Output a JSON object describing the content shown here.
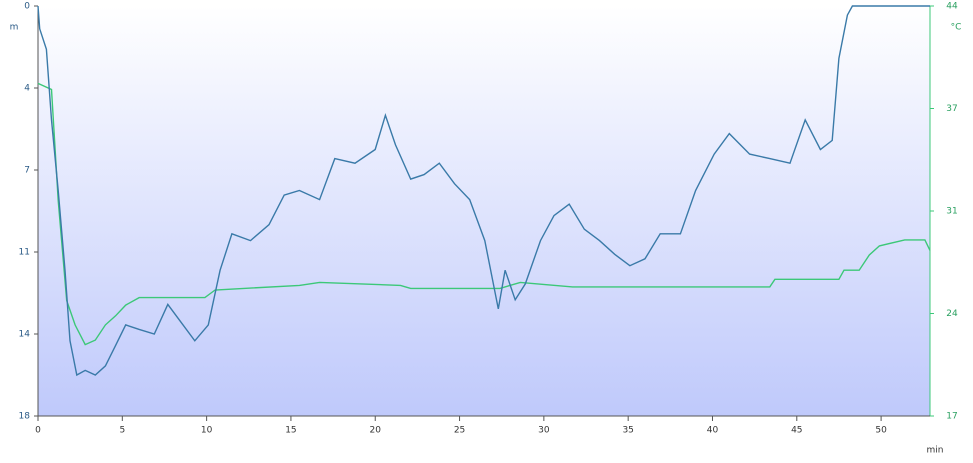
{
  "chart_data": {
    "type": "line",
    "ylabel": "m",
    "y2label": "°C",
    "xlabel": "min",
    "xlim": [
      0,
      52.9
    ],
    "xticks": [
      0,
      5,
      10,
      15,
      20,
      25,
      30,
      35,
      40,
      45,
      50
    ],
    "ylim": [
      0,
      18
    ],
    "y_inverted": true,
    "yticks": [
      0,
      {
        "value": 3.6,
        "label": "4"
      },
      {
        "value": 7.2,
        "label": "7"
      },
      {
        "value": 10.8,
        "label": "11"
      },
      {
        "value": 14.4,
        "label": "14"
      },
      18
    ],
    "y2lim": [
      17,
      44
    ],
    "y2ticks": [
      17,
      {
        "value": 23.75,
        "label": "24"
      },
      {
        "value": 30.5,
        "label": "31"
      },
      {
        "value": 37.25,
        "label": "37"
      },
      44
    ],
    "series": [
      {
        "color": "#3a7aa8",
        "axis": "y",
        "x": [
          0,
          0.1,
          0.5,
          0.8,
          1.2,
          1.6,
          1.9,
          2.3,
          2.8,
          3.4,
          4.0,
          4.6,
          5.2,
          6.0,
          6.9,
          7.7,
          8.4,
          9.3,
          10.1,
          10.8,
          11.5,
          12.6,
          13.7,
          14.6,
          15.5,
          16.7,
          17.6,
          18.8,
          20.0,
          20.6,
          21.2,
          22.1,
          22.9,
          23.8,
          24.7,
          25.6,
          26.5,
          27.3,
          27.7,
          28.3,
          28.9,
          29.8,
          30.6,
          31.5,
          32.4,
          33.3,
          34.2,
          35.1,
          36.0,
          36.9,
          38.1,
          39.0,
          40.1,
          41.0,
          42.2,
          43.4,
          44.6,
          45.5,
          46.4,
          47.1,
          47.5,
          48.0,
          48.3,
          52.9
        ],
        "values": [
          0,
          1.0,
          1.9,
          5.0,
          8.1,
          11.6,
          14.7,
          16.2,
          16.0,
          16.2,
          15.8,
          14.9,
          14.0,
          14.2,
          14.4,
          13.1,
          13.8,
          14.7,
          14.0,
          11.6,
          10.0,
          10.3,
          9.6,
          8.3,
          8.1,
          8.5,
          6.7,
          6.9,
          6.3,
          4.8,
          6.1,
          7.6,
          7.4,
          6.9,
          7.8,
          8.5,
          10.3,
          13.3,
          11.6,
          12.9,
          12.2,
          10.3,
          9.2,
          8.7,
          9.8,
          10.3,
          10.9,
          11.4,
          11.1,
          10.0,
          10.0,
          8.1,
          6.5,
          5.6,
          6.5,
          6.7,
          6.9,
          5.0,
          6.3,
          5.9,
          2.3,
          0.4,
          0,
          0
        ]
      },
      {
        "color": "#3cc878",
        "axis": "y2",
        "x": [
          0,
          0.8,
          1.2,
          1.7,
          2.2,
          2.8,
          3.4,
          4.0,
          4.6,
          5.2,
          6.0,
          9.9,
          10.5,
          15.5,
          16.7,
          21.5,
          22.1,
          27.4,
          28.6,
          31.7,
          43.4,
          43.7,
          47.5,
          47.8,
          48.7,
          49.3,
          49.9,
          51.4,
          52.6,
          52.9
        ],
        "values": [
          38.9,
          38.5,
          31.2,
          24.6,
          23.0,
          21.7,
          22.0,
          23.0,
          23.6,
          24.3,
          24.8,
          24.8,
          25.3,
          25.6,
          25.8,
          25.6,
          25.4,
          25.4,
          25.8,
          25.5,
          25.5,
          26.0,
          26.0,
          26.6,
          26.6,
          27.6,
          28.2,
          28.6,
          28.6,
          27.9
        ]
      }
    ]
  }
}
